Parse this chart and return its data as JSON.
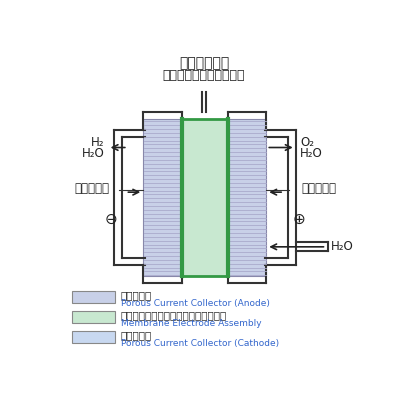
{
  "title_line1": "電極接合体膜",
  "title_line2": "（イオン交換膜＋電極）",
  "bg_color": "#ffffff",
  "cathode_color": "#c8d0e8",
  "cathode_stroke": "#8888aa",
  "mea_color": "#c8e8d0",
  "mea_stroke": "#339944",
  "anode_color": "#c8d0e8",
  "anode_stroke": "#8888aa",
  "legend_border": "#888888",
  "blue_text_color": "#3366cc",
  "black_text_color": "#222222",
  "frame_color": "#333333",
  "hatch_color": "#aaaacc",
  "legend_items": [
    {
      "jp": "陽極集電体",
      "en": "Porous Current Collector (Anode)",
      "color": "#c8d0e8"
    },
    {
      "jp": "電極接合体膜（イオン交換膜＋電極）",
      "en": "Membrane Electrode Assembly",
      "color": "#c8e8d0"
    },
    {
      "jp": "陰極集電体",
      "en": "Porous Current Collector (Cathode)",
      "color": "#c8d8f0"
    }
  ]
}
